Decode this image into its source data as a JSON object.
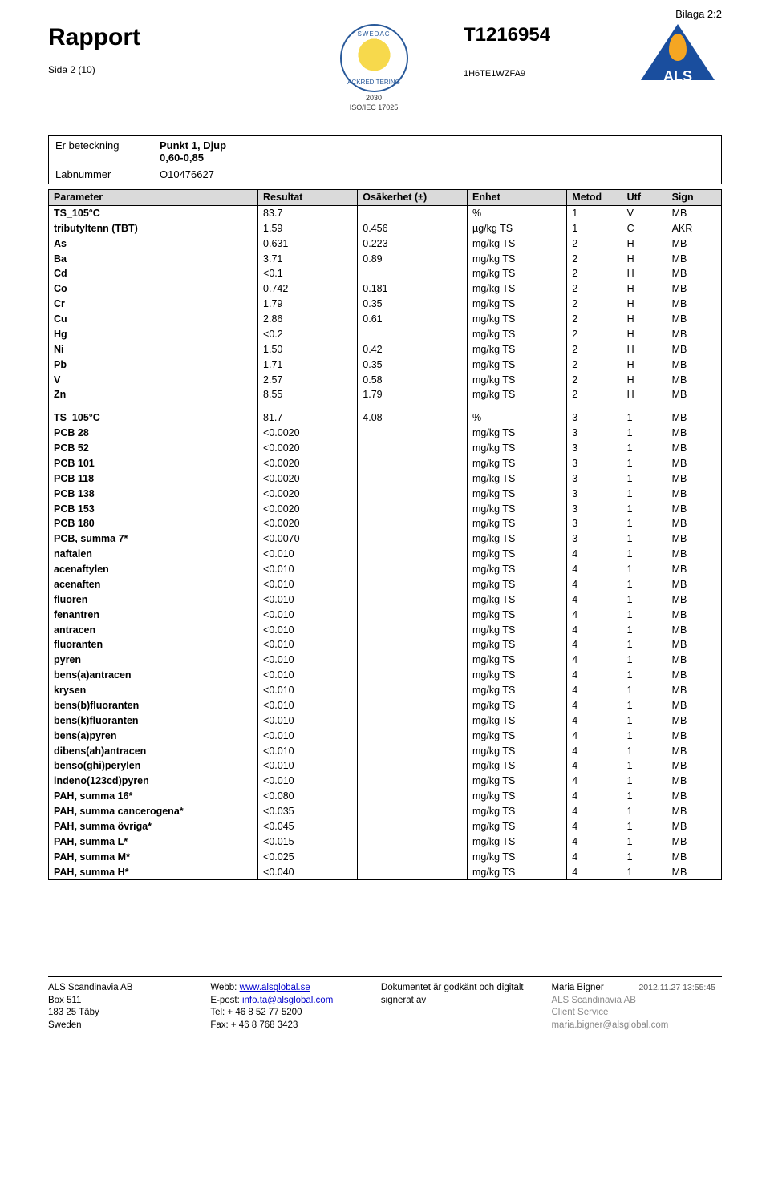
{
  "top_right": "Bilaga 2:2",
  "header": {
    "rapport": "Rapport",
    "page_of": "Sida 2 (10)",
    "tnum": "T1216954",
    "code": "1H6TE1WZFA9",
    "seal_top": "SWEDAC",
    "seal_bot": "ACKREDITERING",
    "seal_year": "2030",
    "seal_iso": "ISO/IEC 17025",
    "als": "ALS"
  },
  "info": {
    "er_label": "Er beteckning",
    "er_val1": "Punkt 1, Djup",
    "er_val2": "0,60-0,85",
    "lab_label": "Labnummer",
    "lab_val": "O10476627"
  },
  "columns": [
    "Parameter",
    "Resultat",
    "Osäkerhet (±)",
    "Enhet",
    "Metod",
    "Utf",
    "Sign"
  ],
  "rows": [
    [
      "TS_105°C",
      "83.7",
      "",
      "%",
      "1",
      "V",
      "MB"
    ],
    [
      "tributyltenn (TBT)",
      "1.59",
      "0.456",
      "µg/kg TS",
      "1",
      "C",
      "AKR"
    ],
    [
      "As",
      "0.631",
      "0.223",
      "mg/kg TS",
      "2",
      "H",
      "MB"
    ],
    [
      "Ba",
      "3.71",
      "0.89",
      "mg/kg TS",
      "2",
      "H",
      "MB"
    ],
    [
      "Cd",
      "<0.1",
      "",
      "mg/kg TS",
      "2",
      "H",
      "MB"
    ],
    [
      "Co",
      "0.742",
      "0.181",
      "mg/kg TS",
      "2",
      "H",
      "MB"
    ],
    [
      "Cr",
      "1.79",
      "0.35",
      "mg/kg TS",
      "2",
      "H",
      "MB"
    ],
    [
      "Cu",
      "2.86",
      "0.61",
      "mg/kg TS",
      "2",
      "H",
      "MB"
    ],
    [
      "Hg",
      "<0.2",
      "",
      "mg/kg TS",
      "2",
      "H",
      "MB"
    ],
    [
      "Ni",
      "1.50",
      "0.42",
      "mg/kg TS",
      "2",
      "H",
      "MB"
    ],
    [
      "Pb",
      "1.71",
      "0.35",
      "mg/kg TS",
      "2",
      "H",
      "MB"
    ],
    [
      "V",
      "2.57",
      "0.58",
      "mg/kg TS",
      "2",
      "H",
      "MB"
    ],
    [
      "Zn",
      "8.55",
      "1.79",
      "mg/kg TS",
      "2",
      "H",
      "MB"
    ],
    "SPACER",
    [
      "TS_105°C",
      "81.7",
      "4.08",
      "%",
      "3",
      "1",
      "MB"
    ],
    [
      "PCB 28",
      "<0.0020",
      "",
      "mg/kg TS",
      "3",
      "1",
      "MB"
    ],
    [
      "PCB 52",
      "<0.0020",
      "",
      "mg/kg TS",
      "3",
      "1",
      "MB"
    ],
    [
      "PCB 101",
      "<0.0020",
      "",
      "mg/kg TS",
      "3",
      "1",
      "MB"
    ],
    [
      "PCB 118",
      "<0.0020",
      "",
      "mg/kg TS",
      "3",
      "1",
      "MB"
    ],
    [
      "PCB 138",
      "<0.0020",
      "",
      "mg/kg TS",
      "3",
      "1",
      "MB"
    ],
    [
      "PCB 153",
      "<0.0020",
      "",
      "mg/kg TS",
      "3",
      "1",
      "MB"
    ],
    [
      "PCB 180",
      "<0.0020",
      "",
      "mg/kg TS",
      "3",
      "1",
      "MB"
    ],
    [
      "PCB, summa 7*",
      "<0.0070",
      "",
      "mg/kg TS",
      "3",
      "1",
      "MB"
    ],
    [
      "naftalen",
      "<0.010",
      "",
      "mg/kg TS",
      "4",
      "1",
      "MB"
    ],
    [
      "acenaftylen",
      "<0.010",
      "",
      "mg/kg TS",
      "4",
      "1",
      "MB"
    ],
    [
      "acenaften",
      "<0.010",
      "",
      "mg/kg TS",
      "4",
      "1",
      "MB"
    ],
    [
      "fluoren",
      "<0.010",
      "",
      "mg/kg TS",
      "4",
      "1",
      "MB"
    ],
    [
      "fenantren",
      "<0.010",
      "",
      "mg/kg TS",
      "4",
      "1",
      "MB"
    ],
    [
      "antracen",
      "<0.010",
      "",
      "mg/kg TS",
      "4",
      "1",
      "MB"
    ],
    [
      "fluoranten",
      "<0.010",
      "",
      "mg/kg TS",
      "4",
      "1",
      "MB"
    ],
    [
      "pyren",
      "<0.010",
      "",
      "mg/kg TS",
      "4",
      "1",
      "MB"
    ],
    [
      "bens(a)antracen",
      "<0.010",
      "",
      "mg/kg TS",
      "4",
      "1",
      "MB"
    ],
    [
      "krysen",
      "<0.010",
      "",
      "mg/kg TS",
      "4",
      "1",
      "MB"
    ],
    [
      "bens(b)fluoranten",
      "<0.010",
      "",
      "mg/kg TS",
      "4",
      "1",
      "MB"
    ],
    [
      "bens(k)fluoranten",
      "<0.010",
      "",
      "mg/kg TS",
      "4",
      "1",
      "MB"
    ],
    [
      "bens(a)pyren",
      "<0.010",
      "",
      "mg/kg TS",
      "4",
      "1",
      "MB"
    ],
    [
      "dibens(ah)antracen",
      "<0.010",
      "",
      "mg/kg TS",
      "4",
      "1",
      "MB"
    ],
    [
      "benso(ghi)perylen",
      "<0.010",
      "",
      "mg/kg TS",
      "4",
      "1",
      "MB"
    ],
    [
      "indeno(123cd)pyren",
      "<0.010",
      "",
      "mg/kg TS",
      "4",
      "1",
      "MB"
    ],
    [
      "PAH, summa 16*",
      "<0.080",
      "",
      "mg/kg TS",
      "4",
      "1",
      "MB"
    ],
    [
      "PAH, summa cancerogena*",
      "<0.035",
      "",
      "mg/kg TS",
      "4",
      "1",
      "MB"
    ],
    [
      "PAH, summa övriga*",
      "<0.045",
      "",
      "mg/kg TS",
      "4",
      "1",
      "MB"
    ],
    [
      "PAH, summa L*",
      "<0.015",
      "",
      "mg/kg TS",
      "4",
      "1",
      "MB"
    ],
    [
      "PAH, summa M*",
      "<0.025",
      "",
      "mg/kg TS",
      "4",
      "1",
      "MB"
    ],
    [
      "PAH, summa H*",
      "<0.040",
      "",
      "mg/kg TS",
      "4",
      "1",
      "MB"
    ]
  ],
  "footer": {
    "c1": [
      "ALS Scandinavia AB",
      "Box 511",
      "183 25 Täby",
      "Sweden"
    ],
    "c2_web_label": "Webb: ",
    "c2_web": "www.alsglobal.se",
    "c2_mail_label": "E-post: ",
    "c2_mail": "info.ta@alsglobal.com",
    "c2_tel": "Tel: + 46 8 52 77 5200",
    "c2_fax": "Fax: + 46 8 768 3423",
    "c3_l1": "Dokumentet är godkänt och digitalt",
    "c3_l2": "signerat av",
    "c4_name": "Maria Bigner",
    "c4_ts": "2012.11.27 13:55:45",
    "c4_org": "ALS Scandinavia AB",
    "c4_dept": "Client Service",
    "c4_mail": "maria.bigner@alsglobal.com"
  }
}
